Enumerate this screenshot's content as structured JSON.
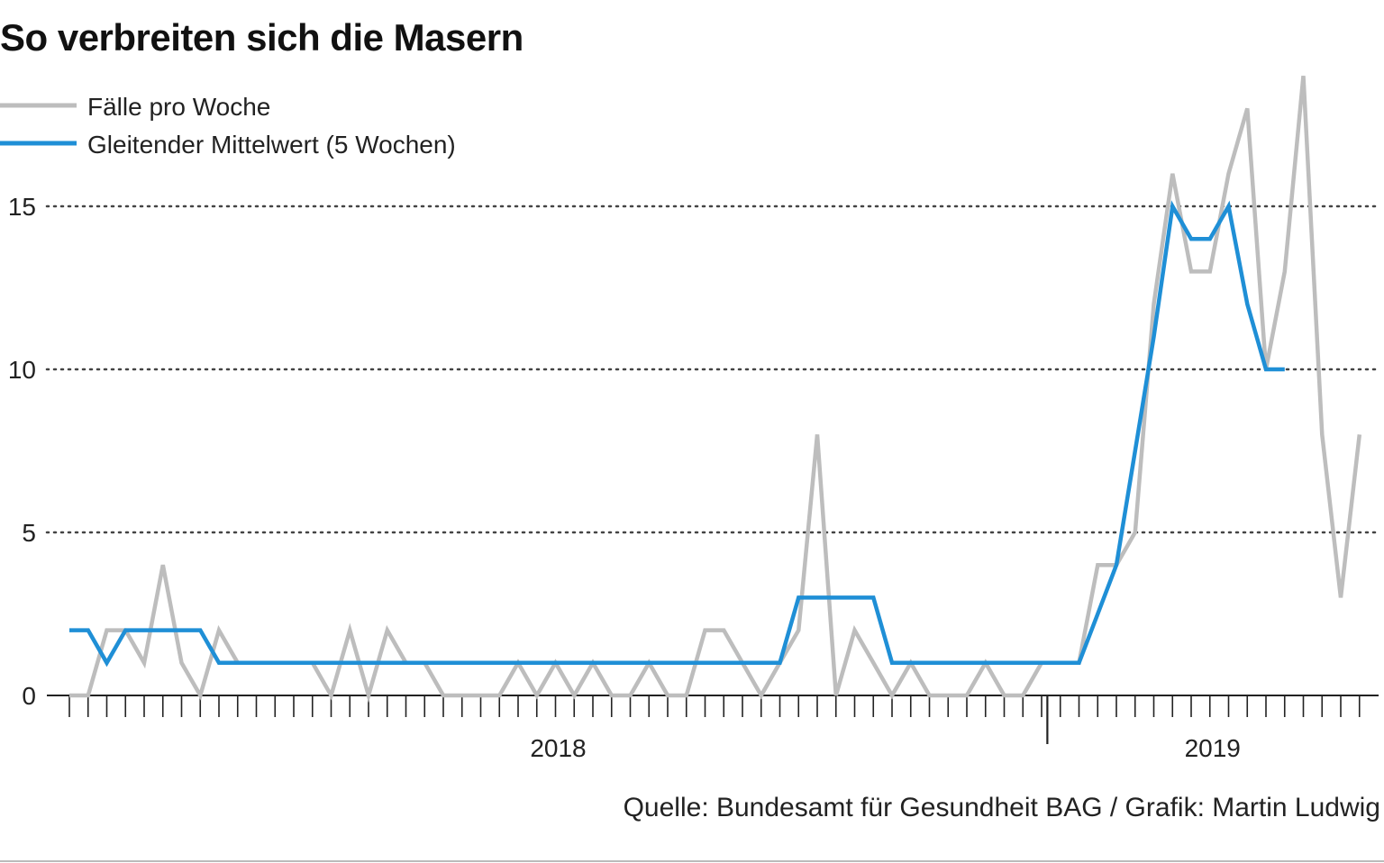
{
  "title": "So verbreiten sich die Masern",
  "source": "Quelle: Bundesamt für Gesundheit BAG / Grafik: Martin Ludwig",
  "colors": {
    "weekly": "#bdbdbd",
    "average": "#1f8fd6",
    "grid": "#444444",
    "axis": "#222222"
  },
  "chart_data": {
    "type": "line",
    "title": "So verbreiten sich die Masern",
    "xlabel": "",
    "ylabel": "",
    "ylim": [
      0,
      19
    ],
    "y_ticks": [
      0,
      5,
      10,
      15
    ],
    "y_tick_labels": [
      "0",
      "5",
      "10",
      "15"
    ],
    "x_year_labels": [
      {
        "label": "2018",
        "week_index": 26
      },
      {
        "label": "2019",
        "week_index": 61
      }
    ],
    "year_boundary_index": 52,
    "legend": "top-left",
    "series": [
      {
        "name": "Fälle pro Woche",
        "values": [
          0,
          0,
          2,
          2,
          1,
          4,
          1,
          0,
          2,
          1,
          1,
          1,
          1,
          1,
          0,
          2,
          0,
          2,
          1,
          1,
          0,
          0,
          0,
          0,
          1,
          0,
          1,
          0,
          1,
          0,
          0,
          1,
          0,
          0,
          2,
          2,
          1,
          0,
          1,
          2,
          8,
          0,
          2,
          1,
          0,
          1,
          0,
          0,
          0,
          1,
          0,
          0,
          1,
          1,
          1,
          4,
          4,
          5,
          12,
          16,
          13,
          13,
          16,
          18,
          10,
          13,
          19,
          8,
          3,
          8
        ]
      },
      {
        "name": "Gleitender Mittelwert (5 Wochen)",
        "values": [
          2,
          2,
          1,
          2,
          2,
          2,
          2,
          2,
          1,
          1,
          1,
          1,
          1,
          1,
          1,
          1,
          1,
          1,
          1,
          1,
          1,
          1,
          1,
          1,
          1,
          1,
          1,
          1,
          1,
          1,
          1,
          1,
          1,
          1,
          1,
          1,
          1,
          1,
          1,
          3,
          3,
          3,
          3,
          3,
          1,
          1,
          1,
          1,
          1,
          1,
          1,
          1,
          1,
          1,
          1,
          2.5,
          4,
          7.5,
          11,
          15,
          14,
          14,
          15,
          12,
          10,
          10
        ]
      }
    ]
  }
}
